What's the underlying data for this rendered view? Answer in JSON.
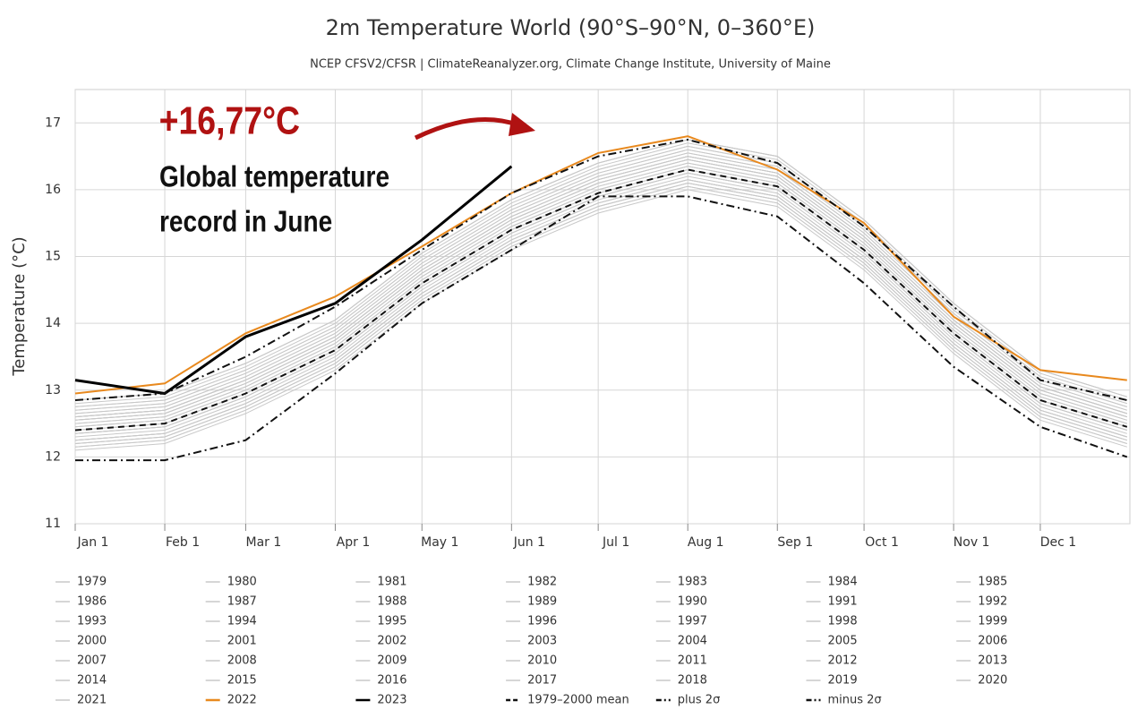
{
  "chart_data": {
    "type": "line",
    "title": "2m Temperature World (90°S–90°N, 0–360°E)",
    "subtitle": "NCEP CFSV2/CFSR | ClimateReanalyzer.org, Climate Change Institute, University of Maine",
    "y_label": "Temperature (°C)",
    "annotations": [
      "+16,77°C",
      "Global temperature",
      "record in June"
    ],
    "x": [
      1,
      32,
      60,
      91,
      121,
      152,
      182,
      213,
      244,
      274,
      305,
      335,
      365
    ],
    "xlim": [
      1,
      366
    ],
    "xticks": [
      {
        "value": 1,
        "label": "Jan 1"
      },
      {
        "value": 32,
        "label": "Feb 1"
      },
      {
        "value": 60,
        "label": "Mar 1"
      },
      {
        "value": 91,
        "label": "Apr 1"
      },
      {
        "value": 121,
        "label": "May 1"
      },
      {
        "value": 152,
        "label": "Jun 1"
      },
      {
        "value": 182,
        "label": "Jul 1"
      },
      {
        "value": 213,
        "label": "Aug 1"
      },
      {
        "value": 244,
        "label": "Sep 1"
      },
      {
        "value": 274,
        "label": "Oct 1"
      },
      {
        "value": 305,
        "label": "Nov 1"
      },
      {
        "value": 335,
        "label": "Dec 1"
      }
    ],
    "ylim": [
      11,
      17.5
    ],
    "yticks": [
      11,
      12,
      13,
      14,
      15,
      16,
      17
    ],
    "grid": true,
    "series": [
      {
        "name": "1979",
        "color": "#c8c8c8",
        "values": [
          12.2,
          12.3,
          12.75,
          13.4,
          14.4,
          15.2,
          15.75,
          16.1,
          15.85,
          14.9,
          13.65,
          12.65,
          12.25
        ]
      },
      {
        "name": "1980",
        "color": "#c8c8c8",
        "values": [
          12.25,
          12.35,
          12.8,
          13.45,
          14.45,
          15.25,
          15.8,
          16.15,
          15.9,
          14.95,
          13.7,
          12.7,
          12.3
        ]
      },
      {
        "name": "1981",
        "color": "#c8c8c8",
        "values": [
          12.25,
          12.35,
          12.8,
          13.45,
          14.45,
          15.25,
          15.8,
          16.15,
          15.9,
          14.95,
          13.7,
          12.7,
          12.3
        ]
      },
      {
        "name": "1982",
        "color": "#c8c8c8",
        "values": [
          12.15,
          12.25,
          12.7,
          13.35,
          14.35,
          15.15,
          15.7,
          16.05,
          15.8,
          14.85,
          13.6,
          12.6,
          12.2
        ]
      },
      {
        "name": "1983",
        "color": "#c8c8c8",
        "values": [
          12.3,
          12.4,
          12.85,
          13.5,
          14.5,
          15.3,
          15.85,
          16.2,
          15.95,
          15.0,
          13.75,
          12.75,
          12.35
        ]
      },
      {
        "name": "1984",
        "color": "#c8c8c8",
        "values": [
          12.15,
          12.25,
          12.7,
          13.35,
          14.35,
          15.15,
          15.7,
          16.05,
          15.8,
          14.85,
          13.6,
          12.6,
          12.2
        ]
      },
      {
        "name": "1985",
        "color": "#c8c8c8",
        "values": [
          12.1,
          12.2,
          12.65,
          13.3,
          14.3,
          15.1,
          15.65,
          16.0,
          15.75,
          14.8,
          13.55,
          12.55,
          12.15
        ]
      },
      {
        "name": "1986",
        "color": "#c8c8c8",
        "values": [
          12.2,
          12.3,
          12.75,
          13.4,
          14.4,
          15.2,
          15.75,
          16.1,
          15.85,
          14.9,
          13.65,
          12.65,
          12.25
        ]
      },
      {
        "name": "1987",
        "color": "#c8c8c8",
        "values": [
          12.35,
          12.45,
          12.9,
          13.55,
          14.55,
          15.35,
          15.9,
          16.25,
          16.0,
          15.05,
          13.8,
          12.8,
          12.4
        ]
      },
      {
        "name": "1988",
        "color": "#c8c8c8",
        "values": [
          12.4,
          12.5,
          12.95,
          13.6,
          14.6,
          15.4,
          15.95,
          16.3,
          16.05,
          15.1,
          13.85,
          12.85,
          12.45
        ]
      },
      {
        "name": "1989",
        "color": "#c8c8c8",
        "values": [
          12.25,
          12.35,
          12.8,
          13.45,
          14.45,
          15.25,
          15.8,
          16.15,
          15.9,
          14.95,
          13.7,
          12.7,
          12.3
        ]
      },
      {
        "name": "1990",
        "color": "#c8c8c8",
        "values": [
          12.4,
          12.5,
          12.95,
          13.6,
          14.6,
          15.4,
          15.95,
          16.3,
          16.05,
          15.1,
          13.85,
          12.85,
          12.45
        ]
      },
      {
        "name": "1991",
        "color": "#c8c8c8",
        "values": [
          12.35,
          12.45,
          12.9,
          13.55,
          14.55,
          15.35,
          15.9,
          16.25,
          16.0,
          15.05,
          13.8,
          12.8,
          12.4
        ]
      },
      {
        "name": "1992",
        "color": "#c8c8c8",
        "values": [
          12.2,
          12.3,
          12.75,
          13.4,
          14.4,
          15.2,
          15.75,
          16.1,
          15.85,
          14.9,
          13.65,
          12.65,
          12.25
        ]
      },
      {
        "name": "1993",
        "color": "#c8c8c8",
        "values": [
          12.25,
          12.35,
          12.8,
          13.45,
          14.45,
          15.25,
          15.8,
          16.15,
          15.9,
          14.95,
          13.7,
          12.7,
          12.3
        ]
      },
      {
        "name": "1994",
        "color": "#c8c8c8",
        "values": [
          12.35,
          12.45,
          12.9,
          13.55,
          14.55,
          15.35,
          15.9,
          16.25,
          16.0,
          15.05,
          13.8,
          12.8,
          12.4
        ]
      },
      {
        "name": "1995",
        "color": "#c8c8c8",
        "values": [
          12.45,
          12.55,
          13.0,
          13.65,
          14.65,
          15.45,
          16.0,
          16.35,
          16.1,
          15.15,
          13.9,
          12.9,
          12.5
        ]
      },
      {
        "name": "1996",
        "color": "#c8c8c8",
        "values": [
          12.35,
          12.45,
          12.9,
          13.55,
          14.55,
          15.35,
          15.9,
          16.25,
          16.0,
          15.05,
          13.8,
          12.8,
          12.4
        ]
      },
      {
        "name": "1997",
        "color": "#c8c8c8",
        "values": [
          12.45,
          12.55,
          13.0,
          13.65,
          14.65,
          15.45,
          16.0,
          16.35,
          16.1,
          15.15,
          13.9,
          12.9,
          12.5
        ]
      },
      {
        "name": "1998",
        "color": "#c8c8c8",
        "values": [
          12.6,
          12.7,
          13.15,
          13.8,
          14.8,
          15.6,
          16.15,
          16.5,
          16.25,
          15.3,
          14.05,
          13.05,
          12.65
        ]
      },
      {
        "name": "1999",
        "color": "#c8c8c8",
        "values": [
          12.4,
          12.5,
          12.95,
          13.6,
          14.6,
          15.4,
          15.95,
          16.3,
          16.05,
          15.1,
          13.85,
          12.85,
          12.45
        ]
      },
      {
        "name": "2000",
        "color": "#c8c8c8",
        "values": [
          12.4,
          12.5,
          12.95,
          13.6,
          14.6,
          15.4,
          15.95,
          16.3,
          16.05,
          15.1,
          13.85,
          12.85,
          12.45
        ]
      },
      {
        "name": "2001",
        "color": "#c8c8c8",
        "values": [
          12.5,
          12.6,
          13.05,
          13.7,
          14.7,
          15.5,
          16.05,
          16.4,
          16.15,
          15.2,
          13.95,
          12.95,
          12.55
        ]
      },
      {
        "name": "2002",
        "color": "#c8c8c8",
        "values": [
          12.55,
          12.65,
          13.1,
          13.75,
          14.75,
          15.55,
          16.1,
          16.45,
          16.2,
          15.25,
          14.0,
          13.0,
          12.6
        ]
      },
      {
        "name": "2003",
        "color": "#c8c8c8",
        "values": [
          12.55,
          12.65,
          13.1,
          13.75,
          14.75,
          15.55,
          16.1,
          16.45,
          16.2,
          15.25,
          14.0,
          13.0,
          12.6
        ]
      },
      {
        "name": "2004",
        "color": "#c8c8c8",
        "values": [
          12.5,
          12.6,
          13.05,
          13.7,
          14.7,
          15.5,
          16.05,
          16.4,
          16.15,
          15.2,
          13.95,
          12.95,
          12.55
        ]
      },
      {
        "name": "2005",
        "color": "#c8c8c8",
        "values": [
          12.6,
          12.7,
          13.15,
          13.8,
          14.8,
          15.6,
          16.15,
          16.5,
          16.25,
          15.3,
          14.05,
          13.05,
          12.65
        ]
      },
      {
        "name": "2006",
        "color": "#c8c8c8",
        "values": [
          12.55,
          12.65,
          13.1,
          13.75,
          14.75,
          15.55,
          16.1,
          16.45,
          16.2,
          15.25,
          14.0,
          13.0,
          12.6
        ]
      },
      {
        "name": "2007",
        "color": "#c8c8c8",
        "values": [
          12.6,
          12.7,
          13.15,
          13.8,
          14.8,
          15.6,
          16.15,
          16.5,
          16.25,
          15.3,
          14.05,
          13.05,
          12.65
        ]
      },
      {
        "name": "2008",
        "color": "#c8c8c8",
        "values": [
          12.45,
          12.55,
          13.0,
          13.65,
          14.65,
          15.45,
          16.0,
          16.35,
          16.1,
          15.15,
          13.9,
          12.9,
          12.5
        ]
      },
      {
        "name": "2009",
        "color": "#c8c8c8",
        "values": [
          12.6,
          12.7,
          13.15,
          13.8,
          14.8,
          15.6,
          16.15,
          16.5,
          16.25,
          15.3,
          14.05,
          13.05,
          12.65
        ]
      },
      {
        "name": "2010",
        "color": "#c8c8c8",
        "values": [
          12.7,
          12.8,
          13.25,
          13.9,
          14.9,
          15.7,
          16.25,
          16.6,
          16.35,
          15.4,
          14.15,
          13.15,
          12.75
        ]
      },
      {
        "name": "2011",
        "color": "#c8c8c8",
        "values": [
          12.55,
          12.65,
          13.1,
          13.75,
          14.75,
          15.55,
          16.1,
          16.45,
          16.2,
          15.25,
          14.0,
          13.0,
          12.6
        ]
      },
      {
        "name": "2012",
        "color": "#c8c8c8",
        "values": [
          12.6,
          12.7,
          13.15,
          13.8,
          14.8,
          15.6,
          16.15,
          16.5,
          16.25,
          15.3,
          14.05,
          13.05,
          12.65
        ]
      },
      {
        "name": "2013",
        "color": "#c8c8c8",
        "values": [
          12.65,
          12.75,
          13.2,
          13.85,
          14.85,
          15.65,
          16.2,
          16.55,
          16.3,
          15.35,
          14.1,
          13.1,
          12.7
        ]
      },
      {
        "name": "2014",
        "color": "#c8c8c8",
        "values": [
          12.65,
          12.75,
          13.2,
          13.85,
          14.85,
          15.65,
          16.2,
          16.55,
          16.3,
          15.35,
          14.1,
          13.1,
          12.7
        ]
      },
      {
        "name": "2015",
        "color": "#c8c8c8",
        "values": [
          12.75,
          12.85,
          13.3,
          13.95,
          14.95,
          15.75,
          16.3,
          16.65,
          16.4,
          15.45,
          14.2,
          13.2,
          12.8
        ]
      },
      {
        "name": "2016",
        "color": "#c8c8c8",
        "values": [
          12.85,
          12.95,
          13.4,
          14.05,
          15.05,
          15.85,
          16.4,
          16.75,
          16.5,
          15.55,
          14.3,
          13.3,
          12.9
        ]
      },
      {
        "name": "2017",
        "color": "#c8c8c8",
        "values": [
          12.8,
          12.9,
          13.35,
          14.0,
          15.0,
          15.8,
          16.35,
          16.7,
          16.45,
          15.5,
          14.25,
          13.25,
          12.85
        ]
      },
      {
        "name": "2018",
        "color": "#c8c8c8",
        "values": [
          12.7,
          12.8,
          13.25,
          13.9,
          14.9,
          15.7,
          16.25,
          16.6,
          16.35,
          15.4,
          14.15,
          13.15,
          12.75
        ]
      },
      {
        "name": "2019",
        "color": "#c8c8c8",
        "values": [
          12.85,
          12.95,
          13.4,
          14.05,
          15.05,
          15.85,
          16.4,
          16.75,
          16.5,
          15.55,
          14.3,
          13.3,
          12.9
        ]
      },
      {
        "name": "2020",
        "color": "#c8c8c8",
        "values": [
          12.85,
          12.95,
          13.4,
          14.05,
          15.05,
          15.85,
          16.4,
          16.75,
          16.5,
          15.55,
          14.3,
          13.3,
          12.9
        ]
      },
      {
        "name": "2021",
        "color": "#c8c8c8",
        "values": [
          12.75,
          12.85,
          13.3,
          13.95,
          14.95,
          15.75,
          16.3,
          16.65,
          16.4,
          15.45,
          14.2,
          13.2,
          12.8
        ]
      },
      {
        "name": "2022",
        "color": "#e8891e",
        "values": [
          12.95,
          13.1,
          13.85,
          14.4,
          15.15,
          15.95,
          16.55,
          16.8,
          16.3,
          15.5,
          14.1,
          13.3,
          13.15
        ]
      },
      {
        "name": "2023",
        "color": "#000000",
        "values": [
          13.15,
          12.95,
          13.8,
          14.3,
          15.25,
          16.35,
          null,
          null,
          null,
          null,
          null,
          null,
          null
        ]
      },
      {
        "name": "1979–2000 mean",
        "color": "#111111",
        "dash": "dashed",
        "values": [
          12.4,
          12.5,
          12.95,
          13.6,
          14.6,
          15.4,
          15.95,
          16.3,
          16.05,
          15.1,
          13.85,
          12.85,
          12.45
        ]
      },
      {
        "name": "plus 2σ",
        "color": "#111111",
        "dash": "dashdot",
        "values": [
          12.85,
          12.95,
          13.5,
          14.25,
          15.1,
          15.95,
          16.5,
          16.75,
          16.4,
          15.45,
          14.25,
          13.15,
          12.85
        ]
      },
      {
        "name": "minus 2σ",
        "color": "#111111",
        "dash": "dashdot",
        "values": [
          11.95,
          11.95,
          12.25,
          13.25,
          14.3,
          15.1,
          15.9,
          15.9,
          15.6,
          14.6,
          13.35,
          12.45,
          12.0
        ]
      }
    ]
  }
}
